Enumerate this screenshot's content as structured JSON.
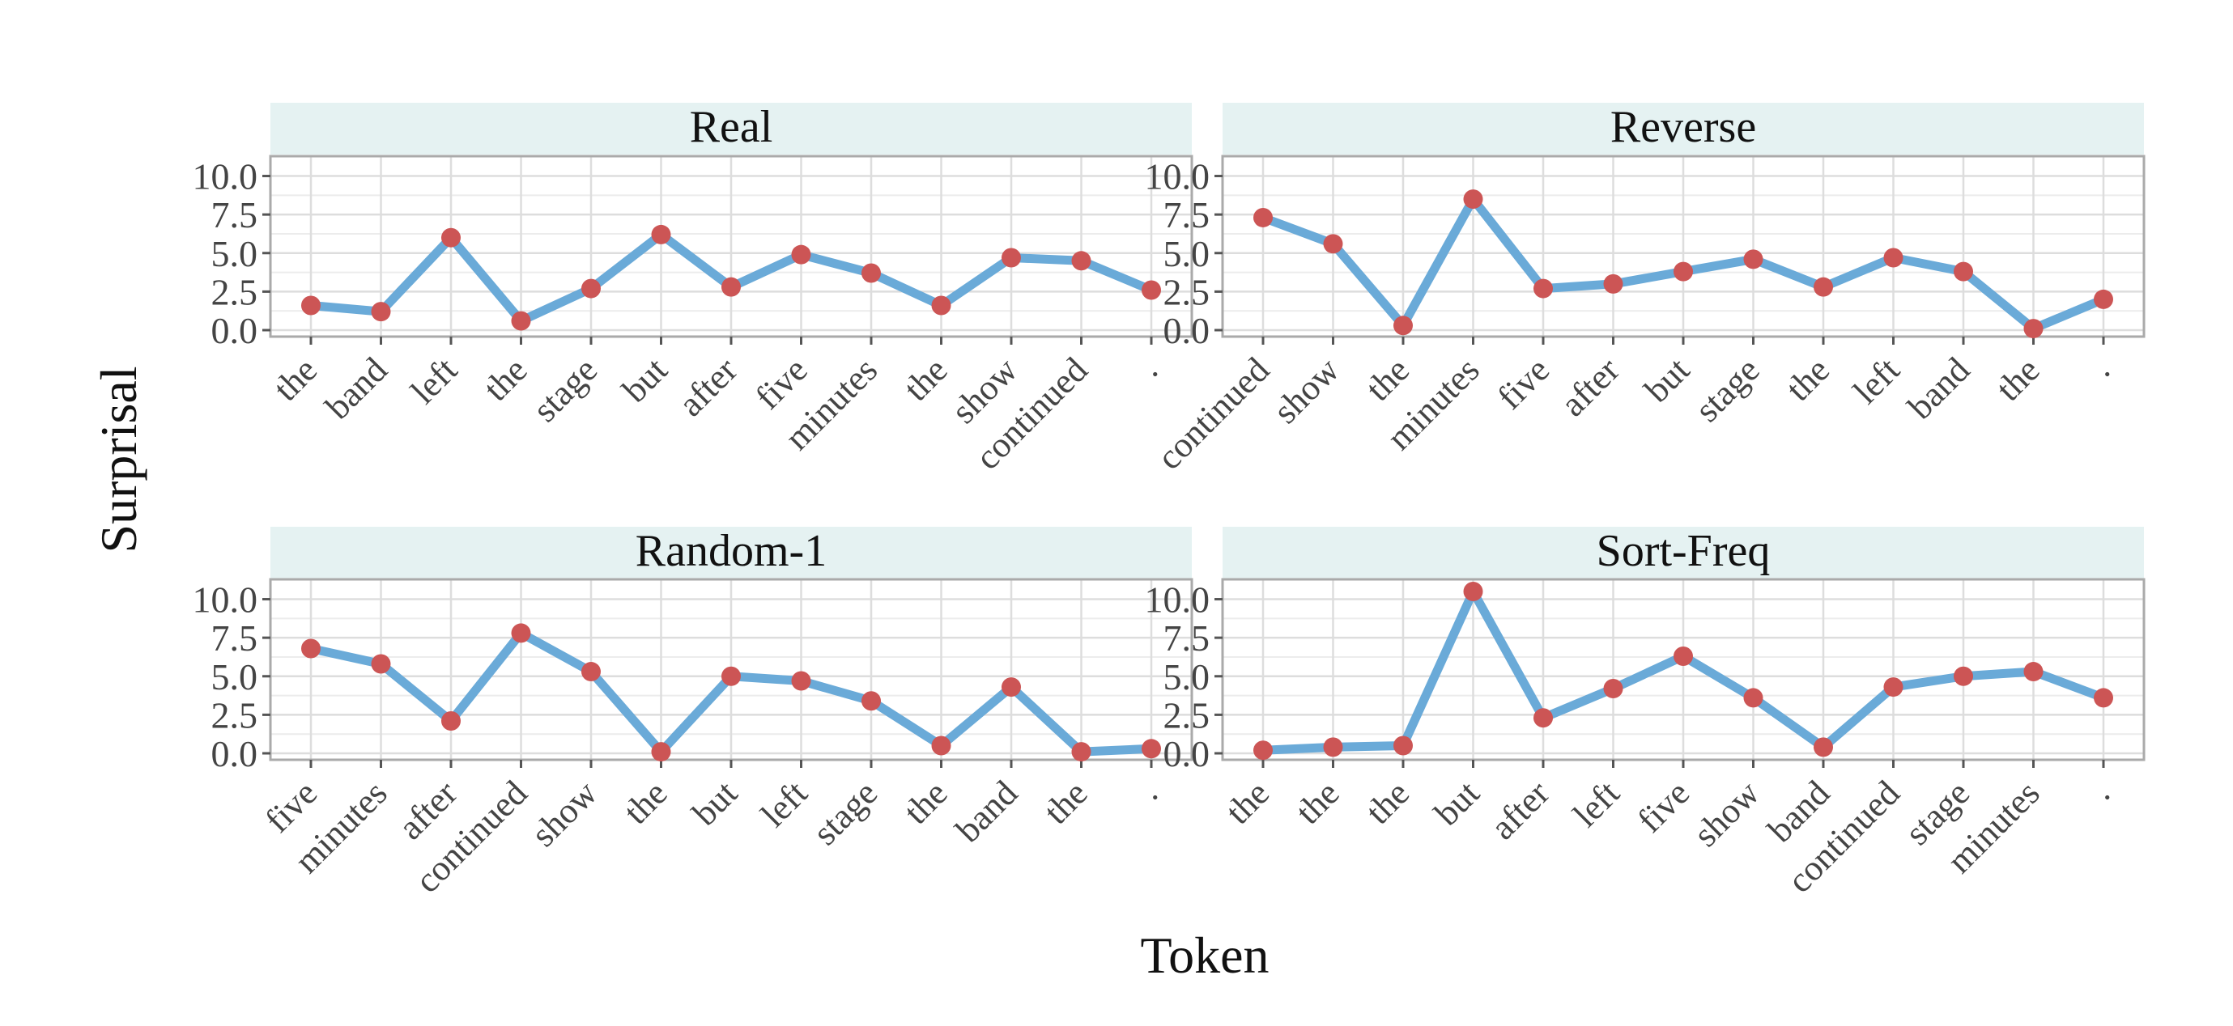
{
  "figure": {
    "xlabel": "Token",
    "ylabel": "Surprisal",
    "colors": {
      "line": "#6aaad8",
      "point": "#cc5555",
      "strip": "#e5f2f2",
      "grid": "#dddddd",
      "frame": "#aaaaaa"
    }
  },
  "chart_data": [
    {
      "type": "line",
      "title": "Real",
      "categories": [
        "the",
        "band",
        "left",
        "the",
        "stage",
        "but",
        "after",
        "five",
        "minutes",
        "the",
        "show",
        "continued",
        "."
      ],
      "values": [
        1.6,
        1.2,
        6.0,
        0.6,
        2.7,
        6.2,
        2.8,
        4.9,
        3.7,
        1.6,
        4.7,
        4.5,
        2.6
      ],
      "ylim": [
        0,
        10.5
      ],
      "yticks": [
        "0.0",
        "2.5",
        "5.0",
        "7.5",
        "10.0"
      ],
      "grid": true
    },
    {
      "type": "line",
      "title": "Reverse",
      "categories": [
        "continued",
        "show",
        "the",
        "minutes",
        "five",
        "after",
        "but",
        "stage",
        "the",
        "left",
        "band",
        "the",
        "."
      ],
      "values": [
        7.3,
        5.6,
        0.3,
        8.5,
        2.7,
        3.0,
        3.8,
        4.6,
        2.8,
        4.7,
        3.8,
        0.1,
        2.0
      ],
      "ylim": [
        0,
        10.5
      ],
      "yticks": [
        "0.0",
        "2.5",
        "5.0",
        "7.5",
        "10.0"
      ],
      "grid": true
    },
    {
      "type": "line",
      "title": "Random-1",
      "categories": [
        "five",
        "minutes",
        "after",
        "continued",
        "show",
        "the",
        "but",
        "left",
        "stage",
        "the",
        "band",
        "the",
        "."
      ],
      "values": [
        6.8,
        5.8,
        2.1,
        7.8,
        5.3,
        0.1,
        5.0,
        4.7,
        3.4,
        0.5,
        4.3,
        0.1,
        0.3
      ],
      "ylim": [
        0,
        10.5
      ],
      "yticks": [
        "0.0",
        "2.5",
        "5.0",
        "7.5",
        "10.0"
      ],
      "grid": true
    },
    {
      "type": "line",
      "title": "Sort-Freq",
      "categories": [
        "the",
        "the",
        "the",
        "but",
        "after",
        "left",
        "five",
        "show",
        "band",
        "continued",
        "stage",
        "minutes",
        "."
      ],
      "values": [
        0.2,
        0.4,
        0.5,
        10.5,
        2.3,
        4.2,
        6.3,
        3.6,
        0.4,
        4.3,
        5.0,
        5.3,
        3.6
      ],
      "ylim": [
        0,
        10.5
      ],
      "yticks": [
        "0.0",
        "2.5",
        "5.0",
        "7.5",
        "10.0"
      ],
      "grid": true
    }
  ]
}
